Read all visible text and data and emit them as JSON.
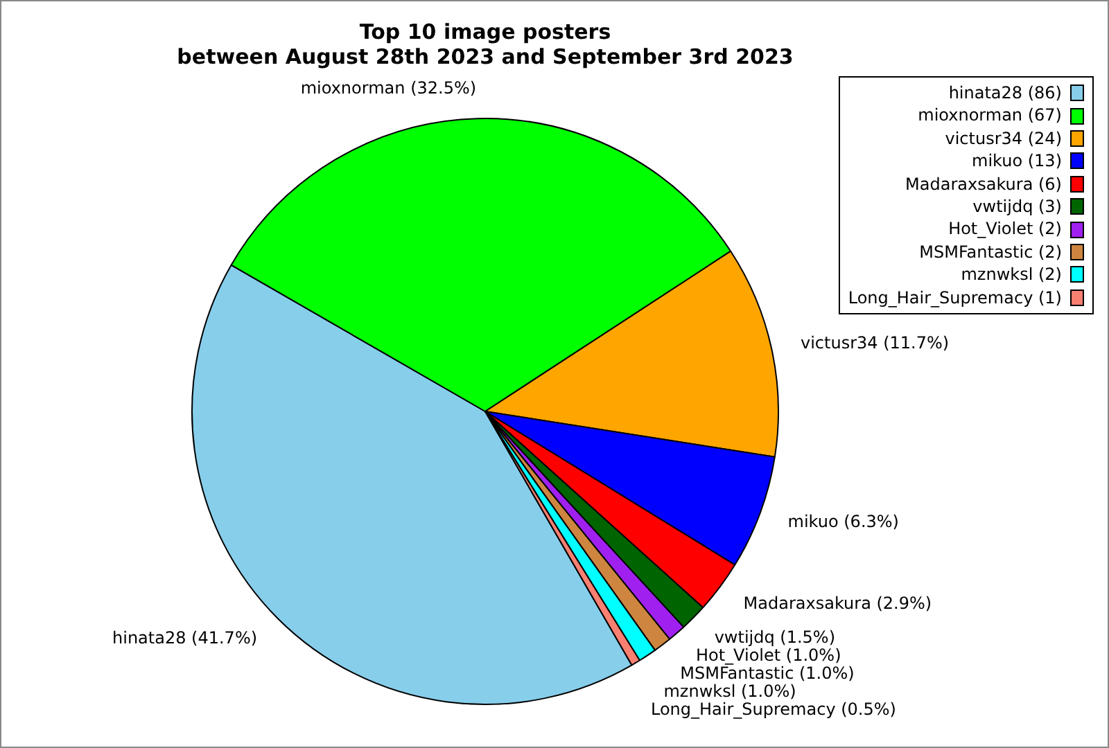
{
  "chart_data": {
    "type": "pie",
    "title": "Top 10 image posters\nbetween August 28th 2023 and September 3rd 2023",
    "categories": [
      "hinata28 (86)",
      "mioxnorman (67)",
      "victusr34 (24)",
      "mikuo (13)",
      "Madaraxsakura (6)",
      "vwtijdq (3)",
      "Hot_Violet (2)",
      "MSMFantastic (2)",
      "mznwksl (2)",
      "Long_Hair_Supremacy (1)"
    ],
    "values": [
      41.7,
      32.5,
      11.7,
      6.3,
      2.9,
      1.5,
      1.0,
      1.0,
      1.0,
      0.5
    ],
    "colors": [
      "#87ceeb",
      "#00ff00",
      "#ffa500",
      "#0000ff",
      "#ff0000",
      "#006400",
      "#a020f0",
      "#cd853f",
      "#00ffff",
      "#fa8072"
    ],
    "value_labels": [
      "hinata28 (41.7%)",
      "mioxnorman (32.5%)",
      "victusr34 (11.7%)",
      "mikuo (6.3%)",
      "Madaraxsakura (2.9%)",
      "vwtijdq (1.5%)",
      "Hot_Violet (1.0%)",
      "MSMFantastic (1.0%)",
      "mznwksl (1.0%)",
      "Long_Hair_Supremacy (0.5%)"
    ],
    "legend": "top right"
  }
}
